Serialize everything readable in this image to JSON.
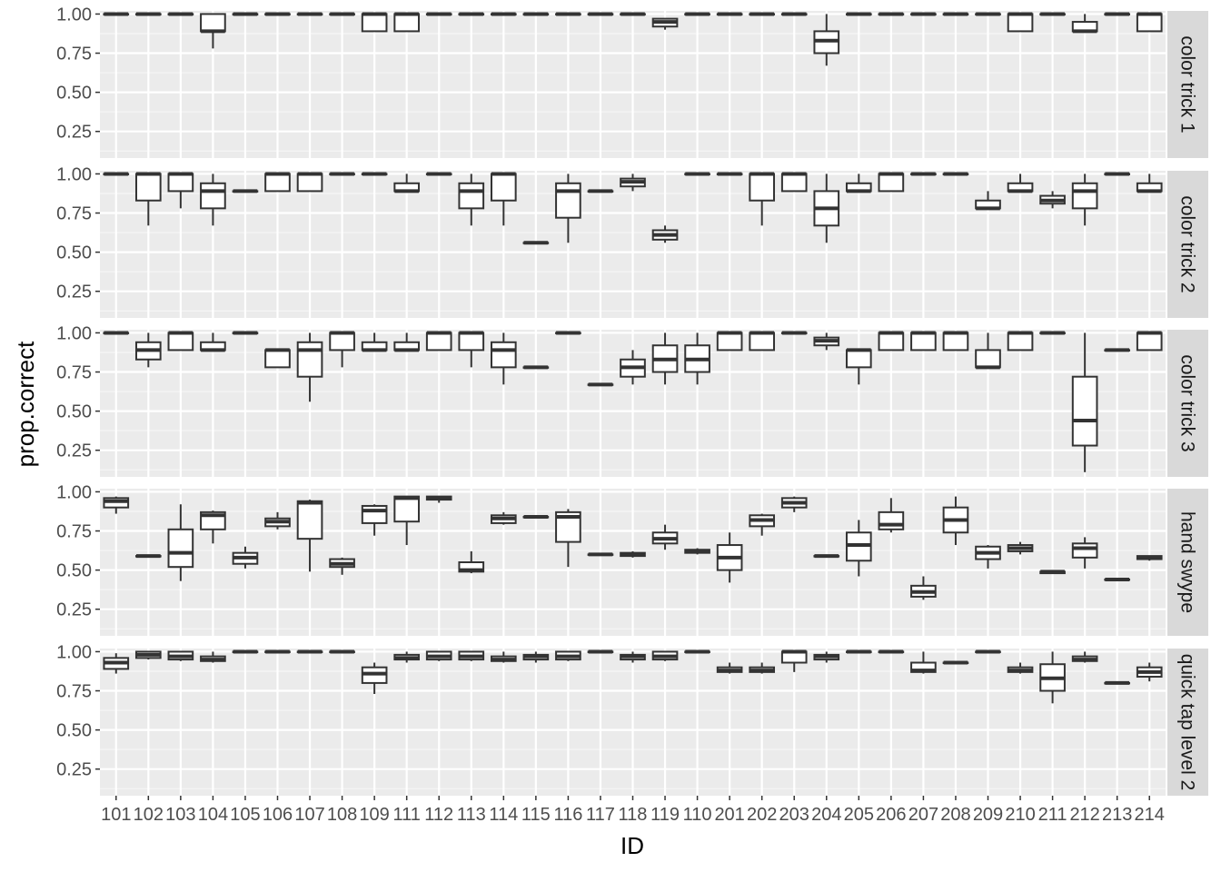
{
  "chart_data": {
    "type": "boxplot",
    "xlabel": "ID",
    "ylabel": "prop.correct",
    "ylim": [
      0.08,
      1.02
    ],
    "y_ticks": [
      0.25,
      0.5,
      0.75,
      1.0
    ],
    "y_tick_labels": [
      "0.25",
      "0.50",
      "0.75",
      "1.00"
    ],
    "categories": [
      "101",
      "102",
      "103",
      "104",
      "105",
      "106",
      "107",
      "108",
      "109",
      "111",
      "112",
      "113",
      "114",
      "115",
      "116",
      "117",
      "118",
      "119",
      "110",
      "201",
      "202",
      "203",
      "204",
      "205",
      "206",
      "207",
      "208",
      "209",
      "210",
      "211",
      "212",
      "213",
      "214"
    ],
    "facet_position": "right",
    "grid": true,
    "panels": [
      {
        "name": "color trick 1",
        "boxes": [
          [
            1,
            1,
            1,
            1,
            1
          ],
          [
            1,
            1,
            1,
            1,
            1
          ],
          [
            1,
            1,
            1,
            1,
            1
          ],
          [
            0.78,
            0.89,
            0.89,
            1,
            1
          ],
          [
            1,
            1,
            1,
            1,
            1
          ],
          [
            1,
            1,
            1,
            1,
            1
          ],
          [
            1,
            1,
            1,
            1,
            1
          ],
          [
            1,
            1,
            1,
            1,
            1
          ],
          [
            0.89,
            0.89,
            1,
            1,
            1
          ],
          [
            0.89,
            0.89,
            1,
            1,
            1
          ],
          [
            1,
            1,
            1,
            1,
            1
          ],
          [
            1,
            1,
            1,
            1,
            1
          ],
          [
            1,
            1,
            1,
            1,
            1
          ],
          [
            1,
            1,
            1,
            1,
            1
          ],
          [
            1,
            1,
            1,
            1,
            1
          ],
          [
            1,
            1,
            1,
            1,
            1
          ],
          [
            1,
            1,
            1,
            1,
            1
          ],
          [
            0.9,
            0.92,
            0.95,
            0.97,
            0.97
          ],
          [
            1,
            1,
            1,
            1,
            1
          ],
          [
            1,
            1,
            1,
            1,
            1
          ],
          [
            1,
            1,
            1,
            1,
            1
          ],
          [
            1,
            1,
            1,
            1,
            1
          ],
          [
            0.67,
            0.75,
            0.83,
            0.89,
            1
          ],
          [
            1,
            1,
            1,
            1,
            1
          ],
          [
            1,
            1,
            1,
            1,
            1
          ],
          [
            1,
            1,
            1,
            1,
            1
          ],
          [
            1,
            1,
            1,
            1,
            1
          ],
          [
            1,
            1,
            1,
            1,
            1
          ],
          [
            0.89,
            0.89,
            1,
            1,
            1
          ],
          [
            1,
            1,
            1,
            1,
            1
          ],
          [
            0.89,
            0.89,
            0.89,
            0.95,
            1
          ],
          [
            1,
            1,
            1,
            1,
            1
          ],
          [
            0.89,
            0.89,
            1,
            1,
            1
          ]
        ]
      },
      {
        "name": "color trick 2",
        "boxes": [
          [
            1,
            1,
            1,
            1,
            1
          ],
          [
            0.67,
            0.83,
            1,
            1,
            1
          ],
          [
            0.78,
            0.89,
            1,
            1,
            1
          ],
          [
            0.67,
            0.78,
            0.89,
            0.94,
            1
          ],
          [
            0.89,
            0.89,
            0.89,
            0.89,
            0.89
          ],
          [
            0.89,
            0.89,
            1,
            1,
            1
          ],
          [
            0.89,
            0.89,
            1,
            1,
            1
          ],
          [
            1,
            1,
            1,
            1,
            1
          ],
          [
            1,
            1,
            1,
            1,
            1
          ],
          [
            0.89,
            0.89,
            0.89,
            0.94,
            1
          ],
          [
            1,
            1,
            1,
            1,
            1
          ],
          [
            0.67,
            0.78,
            0.89,
            0.94,
            1
          ],
          [
            0.67,
            0.83,
            1,
            1,
            1
          ],
          [
            0.56,
            0.56,
            0.56,
            0.56,
            0.56
          ],
          [
            0.56,
            0.72,
            0.89,
            0.94,
            1
          ],
          [
            0.89,
            0.89,
            0.89,
            0.89,
            0.89
          ],
          [
            0.89,
            0.92,
            0.95,
            0.97,
            1
          ],
          [
            0.56,
            0.58,
            0.61,
            0.64,
            0.67
          ],
          [
            1,
            1,
            1,
            1,
            1
          ],
          [
            1,
            1,
            1,
            1,
            1
          ],
          [
            0.67,
            0.83,
            1,
            1,
            1
          ],
          [
            0.89,
            0.89,
            1,
            1,
            1
          ],
          [
            0.56,
            0.67,
            0.78,
            0.89,
            1
          ],
          [
            0.89,
            0.89,
            0.89,
            0.94,
            1
          ],
          [
            0.89,
            0.89,
            1,
            1,
            1
          ],
          [
            1,
            1,
            1,
            1,
            1
          ],
          [
            1,
            1,
            1,
            1,
            1
          ],
          [
            0.78,
            0.78,
            0.78,
            0.83,
            0.89
          ],
          [
            0.89,
            0.89,
            0.89,
            0.94,
            1
          ],
          [
            0.78,
            0.81,
            0.83,
            0.86,
            0.89
          ],
          [
            0.67,
            0.78,
            0.89,
            0.94,
            1
          ],
          [
            1,
            1,
            1,
            1,
            1
          ],
          [
            0.89,
            0.89,
            0.89,
            0.94,
            1
          ]
        ]
      },
      {
        "name": "color trick 3",
        "boxes": [
          [
            1,
            1,
            1,
            1,
            1
          ],
          [
            0.78,
            0.83,
            0.89,
            0.94,
            1
          ],
          [
            0.89,
            0.89,
            1,
            1,
            1
          ],
          [
            0.89,
            0.89,
            0.89,
            0.94,
            1
          ],
          [
            1,
            1,
            1,
            1,
            1
          ],
          [
            0.78,
            0.78,
            0.89,
            0.89,
            0.89
          ],
          [
            0.56,
            0.72,
            0.89,
            0.94,
            1
          ],
          [
            0.78,
            0.89,
            1,
            1,
            1
          ],
          [
            0.89,
            0.89,
            0.89,
            0.94,
            1
          ],
          [
            0.89,
            0.89,
            0.89,
            0.94,
            1
          ],
          [
            0.89,
            0.89,
            1,
            1,
            1
          ],
          [
            0.78,
            0.89,
            1,
            1,
            1
          ],
          [
            0.67,
            0.78,
            0.89,
            0.94,
            1
          ],
          [
            0.78,
            0.78,
            0.78,
            0.78,
            0.78
          ],
          [
            1,
            1,
            1,
            1,
            1
          ],
          [
            0.67,
            0.67,
            0.67,
            0.67,
            0.67
          ],
          [
            0.67,
            0.72,
            0.78,
            0.83,
            0.89
          ],
          [
            0.67,
            0.75,
            0.83,
            0.92,
            1
          ],
          [
            0.67,
            0.75,
            0.83,
            0.92,
            1
          ],
          [
            0.89,
            0.89,
            1,
            1,
            1
          ],
          [
            0.89,
            0.89,
            1,
            1,
            1
          ],
          [
            1,
            1,
            1,
            1,
            1
          ],
          [
            0.89,
            0.92,
            0.95,
            0.97,
            1
          ],
          [
            0.67,
            0.78,
            0.89,
            0.89,
            0.89
          ],
          [
            0.89,
            0.89,
            1,
            1,
            1
          ],
          [
            0.89,
            0.89,
            1,
            1,
            1
          ],
          [
            0.89,
            0.89,
            1,
            1,
            1
          ],
          [
            0.78,
            0.78,
            0.78,
            0.89,
            1
          ],
          [
            0.89,
            0.89,
            1,
            1,
            1
          ],
          [
            1,
            1,
            1,
            1,
            1
          ],
          [
            0.11,
            0.28,
            0.44,
            0.72,
            1
          ],
          [
            0.89,
            0.89,
            0.89,
            0.89,
            0.89
          ],
          [
            0.89,
            0.89,
            1,
            1,
            1
          ]
        ]
      },
      {
        "name": "hand swype",
        "boxes": [
          [
            0.86,
            0.9,
            0.94,
            0.96,
            0.97
          ],
          [
            0.59,
            0.59,
            0.59,
            0.59,
            0.59
          ],
          [
            0.43,
            0.52,
            0.61,
            0.76,
            0.92
          ],
          [
            0.67,
            0.76,
            0.85,
            0.87,
            0.88
          ],
          [
            0.51,
            0.54,
            0.58,
            0.61,
            0.65
          ],
          [
            0.76,
            0.78,
            0.81,
            0.83,
            0.87
          ],
          [
            0.49,
            0.7,
            0.93,
            0.94,
            0.95
          ],
          [
            0.47,
            0.52,
            0.54,
            0.57,
            0.58
          ],
          [
            0.72,
            0.8,
            0.88,
            0.91,
            0.92
          ],
          [
            0.66,
            0.81,
            0.96,
            0.97,
            0.97
          ],
          [
            0.93,
            0.95,
            0.96,
            0.97,
            0.97
          ],
          [
            0.48,
            0.49,
            0.5,
            0.55,
            0.62
          ],
          [
            0.79,
            0.8,
            0.83,
            0.85,
            0.87
          ],
          [
            0.84,
            0.84,
            0.84,
            0.84,
            0.84
          ],
          [
            0.52,
            0.68,
            0.84,
            0.87,
            0.89
          ],
          [
            0.6,
            0.6,
            0.6,
            0.6,
            0.6
          ],
          [
            0.58,
            0.59,
            0.6,
            0.61,
            0.62
          ],
          [
            0.63,
            0.67,
            0.7,
            0.74,
            0.79
          ],
          [
            0.6,
            0.61,
            0.62,
            0.63,
            0.64
          ],
          [
            0.42,
            0.5,
            0.58,
            0.66,
            0.74
          ],
          [
            0.72,
            0.78,
            0.82,
            0.85,
            0.86
          ],
          [
            0.87,
            0.9,
            0.93,
            0.96,
            0.97
          ],
          [
            0.59,
            0.59,
            0.59,
            0.59,
            0.59
          ],
          [
            0.46,
            0.56,
            0.66,
            0.74,
            0.82
          ],
          [
            0.74,
            0.76,
            0.79,
            0.87,
            0.96
          ],
          [
            0.31,
            0.33,
            0.36,
            0.4,
            0.46
          ],
          [
            0.66,
            0.74,
            0.82,
            0.9,
            0.97
          ],
          [
            0.51,
            0.57,
            0.61,
            0.65,
            0.66
          ],
          [
            0.6,
            0.62,
            0.64,
            0.66,
            0.68
          ],
          [
            0.48,
            0.48,
            0.49,
            0.49,
            0.5
          ],
          [
            0.51,
            0.58,
            0.64,
            0.67,
            0.71
          ],
          [
            0.44,
            0.44,
            0.44,
            0.44,
            0.44
          ],
          [
            0.56,
            0.57,
            0.58,
            0.59,
            0.59
          ]
        ]
      },
      {
        "name": "quick tap level 2",
        "boxes": [
          [
            0.86,
            0.89,
            0.93,
            0.96,
            0.99
          ],
          [
            0.95,
            0.96,
            0.98,
            1,
            1
          ],
          [
            0.94,
            0.95,
            0.97,
            1,
            1
          ],
          [
            0.93,
            0.94,
            0.95,
            0.97,
            1
          ],
          [
            1,
            1,
            1,
            1,
            1
          ],
          [
            1,
            1,
            1,
            1,
            1
          ],
          [
            1,
            1,
            1,
            1,
            1
          ],
          [
            1,
            1,
            1,
            1,
            1
          ],
          [
            0.73,
            0.8,
            0.86,
            0.9,
            0.93
          ],
          [
            0.93,
            0.95,
            0.96,
            0.98,
            1
          ],
          [
            0.94,
            0.95,
            0.97,
            1,
            1
          ],
          [
            0.94,
            0.95,
            0.97,
            1,
            1
          ],
          [
            0.93,
            0.94,
            0.95,
            0.97,
            1
          ],
          [
            0.93,
            0.95,
            0.97,
            0.98,
            1
          ],
          [
            0.94,
            0.95,
            0.97,
            1,
            1
          ],
          [
            1,
            1,
            1,
            1,
            1
          ],
          [
            0.93,
            0.95,
            0.97,
            0.98,
            1
          ],
          [
            0.94,
            0.95,
            0.97,
            1,
            1
          ],
          [
            1,
            1,
            1,
            1,
            1
          ],
          [
            0.86,
            0.87,
            0.88,
            0.9,
            0.93
          ],
          [
            0.86,
            0.87,
            0.88,
            0.9,
            0.93
          ],
          [
            0.87,
            0.93,
            1,
            1,
            1
          ],
          [
            0.93,
            0.95,
            0.97,
            0.98,
            1
          ],
          [
            1,
            1,
            1,
            1,
            1
          ],
          [
            1,
            1,
            1,
            1,
            1
          ],
          [
            0.86,
            0.87,
            0.88,
            0.93,
            1
          ],
          [
            0.93,
            0.93,
            0.93,
            0.93,
            0.93
          ],
          [
            1,
            1,
            1,
            1,
            1
          ],
          [
            0.86,
            0.87,
            0.88,
            0.9,
            0.93
          ],
          [
            0.67,
            0.75,
            0.83,
            0.92,
            1
          ],
          [
            0.93,
            0.94,
            0.95,
            0.97,
            1
          ],
          [
            0.8,
            0.8,
            0.8,
            0.8,
            0.8
          ],
          [
            0.81,
            0.84,
            0.87,
            0.9,
            0.93
          ]
        ]
      }
    ]
  }
}
